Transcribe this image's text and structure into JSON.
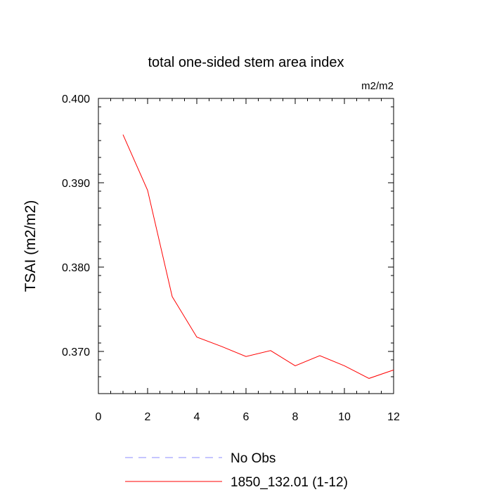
{
  "chart_data": {
    "type": "line",
    "title": "total one-sided stem area index",
    "units": "m2/m2",
    "xlabel": "",
    "ylabel": "TSAI  (m2/m2)",
    "xlim": [
      0,
      12
    ],
    "ylim": [
      0.365,
      0.4
    ],
    "x_ticks": [
      0,
      2,
      4,
      6,
      8,
      10,
      12
    ],
    "x_tick_labels": [
      "0",
      "2",
      "4",
      "6",
      "8",
      "10",
      "12"
    ],
    "y_ticks": [
      0.37,
      0.38,
      0.39,
      0.4
    ],
    "y_tick_labels": [
      "0.370",
      "0.380",
      "0.390",
      "0.400"
    ],
    "grid": false,
    "series": [
      {
        "name": "1850_132.01 (1-12)",
        "color": "#ff0000",
        "dash": "solid",
        "x": [
          1,
          2,
          3,
          4,
          5,
          6,
          7,
          8,
          9,
          10,
          11,
          12
        ],
        "y": [
          0.3957,
          0.3891,
          0.3765,
          0.3717,
          0.3706,
          0.3694,
          0.3701,
          0.3683,
          0.3695,
          0.3683,
          0.3668,
          0.3678
        ]
      }
    ],
    "legend": [
      {
        "label": "No Obs",
        "color": "#8c8cff",
        "dash": "dashed"
      },
      {
        "label": "1850_132.01 (1-12)",
        "color": "#ff0000",
        "dash": "solid"
      }
    ],
    "legend_placement": "bottom"
  }
}
